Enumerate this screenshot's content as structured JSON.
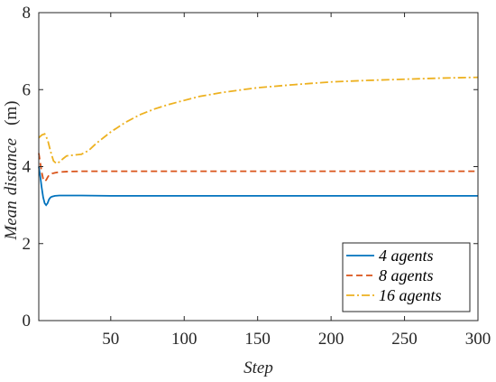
{
  "chart_data": {
    "type": "line",
    "xlabel": "Step",
    "ylabel": {
      "parts": [
        {
          "text": "Mean",
          "italic": true
        },
        {
          "text": "distance",
          "italic": true
        },
        {
          "text": "(m)",
          "italic": false
        }
      ]
    },
    "xlim": [
      1,
      300
    ],
    "ylim": [
      0,
      8
    ],
    "xticks": [
      50,
      100,
      150,
      200,
      250,
      300
    ],
    "yticks": [
      0,
      2,
      4,
      6,
      8
    ],
    "grid": false,
    "legend_position": "bottom-right",
    "series": [
      {
        "name": "4 agents",
        "color": "#0072BD",
        "style": "solid",
        "points": [
          [
            1,
            4.0
          ],
          [
            2,
            3.75
          ],
          [
            3,
            3.45
          ],
          [
            4,
            3.2
          ],
          [
            5,
            3.05
          ],
          [
            6,
            3.0
          ],
          [
            7,
            3.05
          ],
          [
            8,
            3.15
          ],
          [
            9,
            3.2
          ],
          [
            10,
            3.22
          ],
          [
            12,
            3.24
          ],
          [
            15,
            3.25
          ],
          [
            20,
            3.25
          ],
          [
            30,
            3.25
          ],
          [
            50,
            3.24
          ],
          [
            100,
            3.24
          ],
          [
            150,
            3.24
          ],
          [
            200,
            3.24
          ],
          [
            250,
            3.24
          ],
          [
            300,
            3.24
          ]
        ]
      },
      {
        "name": "8 agents",
        "color": "#D95319",
        "style": "dashed",
        "points": [
          [
            1,
            4.35
          ],
          [
            2,
            4.1
          ],
          [
            3,
            3.85
          ],
          [
            4,
            3.68
          ],
          [
            5,
            3.62
          ],
          [
            6,
            3.65
          ],
          [
            7,
            3.72
          ],
          [
            8,
            3.78
          ],
          [
            10,
            3.82
          ],
          [
            12,
            3.84
          ],
          [
            15,
            3.86
          ],
          [
            20,
            3.87
          ],
          [
            30,
            3.88
          ],
          [
            50,
            3.88
          ],
          [
            100,
            3.88
          ],
          [
            150,
            3.88
          ],
          [
            200,
            3.88
          ],
          [
            250,
            3.88
          ],
          [
            300,
            3.88
          ]
        ]
      },
      {
        "name": "16 agents",
        "color": "#EDB120",
        "style": "dashdot",
        "points": [
          [
            1,
            4.75
          ],
          [
            3,
            4.82
          ],
          [
            5,
            4.85
          ],
          [
            7,
            4.7
          ],
          [
            9,
            4.4
          ],
          [
            11,
            4.15
          ],
          [
            13,
            4.08
          ],
          [
            15,
            4.12
          ],
          [
            18,
            4.22
          ],
          [
            20,
            4.28
          ],
          [
            25,
            4.3
          ],
          [
            30,
            4.32
          ],
          [
            35,
            4.42
          ],
          [
            40,
            4.6
          ],
          [
            50,
            4.9
          ],
          [
            60,
            5.15
          ],
          [
            70,
            5.35
          ],
          [
            80,
            5.5
          ],
          [
            90,
            5.62
          ],
          [
            100,
            5.72
          ],
          [
            110,
            5.82
          ],
          [
            125,
            5.92
          ],
          [
            140,
            6.0
          ],
          [
            150,
            6.05
          ],
          [
            175,
            6.13
          ],
          [
            200,
            6.2
          ],
          [
            225,
            6.24
          ],
          [
            250,
            6.27
          ],
          [
            275,
            6.3
          ],
          [
            300,
            6.32
          ]
        ]
      }
    ]
  }
}
